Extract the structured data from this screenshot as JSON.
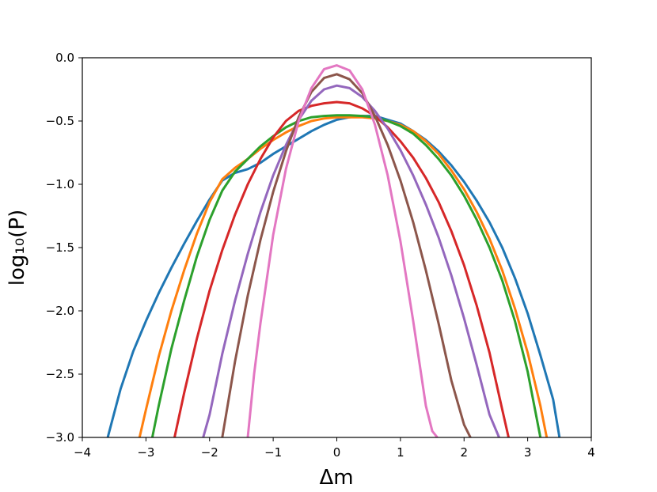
{
  "chart_data": {
    "type": "line",
    "xlabel": "Δm",
    "ylabel": "log₁₀(P)",
    "xlim": [
      -4,
      4
    ],
    "ylim": [
      -3.0,
      0.0
    ],
    "xticks": [
      -4,
      -3,
      -2,
      -1,
      0,
      1,
      2,
      3,
      4
    ],
    "xtick_labels": [
      "−4",
      "−3",
      "−2",
      "−1",
      "0",
      "1",
      "2",
      "3",
      "4"
    ],
    "yticks": [
      0.0,
      -0.5,
      -1.0,
      -1.5,
      -2.0,
      -2.5,
      -3.0
    ],
    "ytick_labels": [
      "0.0",
      "−0.5",
      "−1.0",
      "−1.5",
      "−2.0",
      "−2.5",
      "−3.0"
    ],
    "grid": false,
    "legend": "none",
    "series": [
      {
        "color": "#1f77b4",
        "x": [
          -3.6,
          -3.4,
          -3.2,
          -3.0,
          -2.8,
          -2.6,
          -2.4,
          -2.2,
          -2.0,
          -1.8,
          -1.6,
          -1.4,
          -1.2,
          -1.0,
          -0.8,
          -0.6,
          -0.4,
          -0.2,
          0.0,
          0.2,
          0.4,
          0.6,
          0.8,
          1.0,
          1.2,
          1.4,
          1.6,
          1.8,
          2.0,
          2.2,
          2.4,
          2.6,
          2.8,
          3.0,
          3.2,
          3.4,
          3.5
        ],
        "y": [
          -3.0,
          -2.62,
          -2.32,
          -2.08,
          -1.86,
          -1.66,
          -1.47,
          -1.29,
          -1.12,
          -0.97,
          -0.91,
          -0.88,
          -0.83,
          -0.76,
          -0.7,
          -0.64,
          -0.58,
          -0.53,
          -0.49,
          -0.47,
          -0.46,
          -0.46,
          -0.49,
          -0.52,
          -0.58,
          -0.65,
          -0.74,
          -0.85,
          -0.98,
          -1.13,
          -1.3,
          -1.5,
          -1.74,
          -2.02,
          -2.35,
          -2.7,
          -3.0
        ]
      },
      {
        "color": "#ff7f0e",
        "x": [
          -3.1,
          -3.0,
          -2.8,
          -2.6,
          -2.4,
          -2.2,
          -2.0,
          -1.8,
          -1.6,
          -1.4,
          -1.2,
          -1.0,
          -0.8,
          -0.6,
          -0.4,
          -0.2,
          0.0,
          0.2,
          0.4,
          0.6,
          0.8,
          1.0,
          1.2,
          1.4,
          1.6,
          1.8,
          2.0,
          2.2,
          2.4,
          2.6,
          2.8,
          3.0,
          3.2,
          3.3
        ],
        "y": [
          -3.0,
          -2.78,
          -2.36,
          -2.0,
          -1.68,
          -1.39,
          -1.14,
          -0.96,
          -0.87,
          -0.8,
          -0.72,
          -0.65,
          -0.59,
          -0.54,
          -0.5,
          -0.48,
          -0.47,
          -0.47,
          -0.47,
          -0.48,
          -0.5,
          -0.53,
          -0.58,
          -0.66,
          -0.76,
          -0.89,
          -1.04,
          -1.22,
          -1.43,
          -1.68,
          -1.98,
          -2.33,
          -2.75,
          -3.0
        ]
      },
      {
        "color": "#2ca02c",
        "x": [
          -2.9,
          -2.8,
          -2.6,
          -2.4,
          -2.2,
          -2.0,
          -1.8,
          -1.6,
          -1.4,
          -1.2,
          -1.0,
          -0.8,
          -0.6,
          -0.4,
          -0.2,
          0.0,
          0.2,
          0.4,
          0.6,
          0.8,
          1.0,
          1.2,
          1.4,
          1.6,
          1.8,
          2.0,
          2.2,
          2.4,
          2.6,
          2.8,
          3.0,
          3.2
        ],
        "y": [
          -3.0,
          -2.75,
          -2.3,
          -1.92,
          -1.57,
          -1.28,
          -1.05,
          -0.9,
          -0.8,
          -0.7,
          -0.62,
          -0.55,
          -0.5,
          -0.47,
          -0.46,
          -0.455,
          -0.455,
          -0.46,
          -0.47,
          -0.5,
          -0.54,
          -0.6,
          -0.69,
          -0.8,
          -0.93,
          -1.09,
          -1.28,
          -1.5,
          -1.76,
          -2.08,
          -2.48,
          -3.0
        ]
      },
      {
        "color": "#d62728",
        "x": [
          -2.55,
          -2.4,
          -2.2,
          -2.0,
          -1.8,
          -1.6,
          -1.4,
          -1.2,
          -1.0,
          -0.8,
          -0.6,
          -0.4,
          -0.2,
          0.0,
          0.2,
          0.4,
          0.6,
          0.8,
          1.0,
          1.2,
          1.4,
          1.6,
          1.8,
          2.0,
          2.2,
          2.4,
          2.6,
          2.7
        ],
        "y": [
          -3.0,
          -2.65,
          -2.22,
          -1.84,
          -1.52,
          -1.24,
          -1.0,
          -0.8,
          -0.63,
          -0.5,
          -0.42,
          -0.38,
          -0.36,
          -0.35,
          -0.36,
          -0.4,
          -0.46,
          -0.55,
          -0.66,
          -0.79,
          -0.95,
          -1.14,
          -1.37,
          -1.64,
          -1.96,
          -2.33,
          -2.78,
          -3.0
        ]
      },
      {
        "color": "#9467bd",
        "x": [
          -2.1,
          -2.0,
          -1.8,
          -1.6,
          -1.4,
          -1.2,
          -1.0,
          -0.8,
          -0.6,
          -0.4,
          -0.2,
          0.0,
          0.2,
          0.4,
          0.6,
          0.8,
          1.0,
          1.2,
          1.4,
          1.6,
          1.8,
          2.0,
          2.2,
          2.4,
          2.55
        ],
        "y": [
          -3.0,
          -2.82,
          -2.34,
          -1.92,
          -1.55,
          -1.22,
          -0.93,
          -0.69,
          -0.49,
          -0.34,
          -0.25,
          -0.22,
          -0.24,
          -0.31,
          -0.42,
          -0.56,
          -0.73,
          -0.93,
          -1.16,
          -1.42,
          -1.72,
          -2.06,
          -2.43,
          -2.82,
          -3.0
        ]
      },
      {
        "color": "#8c564b",
        "x": [
          -1.8,
          -1.6,
          -1.4,
          -1.2,
          -1.0,
          -0.8,
          -0.6,
          -0.4,
          -0.2,
          0.0,
          0.2,
          0.4,
          0.6,
          0.8,
          1.0,
          1.2,
          1.4,
          1.6,
          1.8,
          2.0,
          2.1
        ],
        "y": [
          -3.0,
          -2.4,
          -1.88,
          -1.44,
          -1.06,
          -0.74,
          -0.47,
          -0.27,
          -0.16,
          -0.13,
          -0.17,
          -0.28,
          -0.46,
          -0.69,
          -0.97,
          -1.3,
          -1.68,
          -2.1,
          -2.55,
          -2.9,
          -3.0
        ]
      },
      {
        "color": "#e377c2",
        "x": [
          -1.4,
          -1.3,
          -1.2,
          -1.0,
          -0.8,
          -0.6,
          -0.4,
          -0.2,
          0.0,
          0.2,
          0.4,
          0.6,
          0.8,
          1.0,
          1.2,
          1.4,
          1.5,
          1.58
        ],
        "y": [
          -3.0,
          -2.5,
          -2.1,
          -1.4,
          -0.88,
          -0.5,
          -0.24,
          -0.09,
          -0.06,
          -0.1,
          -0.25,
          -0.53,
          -0.93,
          -1.45,
          -2.08,
          -2.75,
          -2.95,
          -3.0
        ]
      }
    ]
  }
}
